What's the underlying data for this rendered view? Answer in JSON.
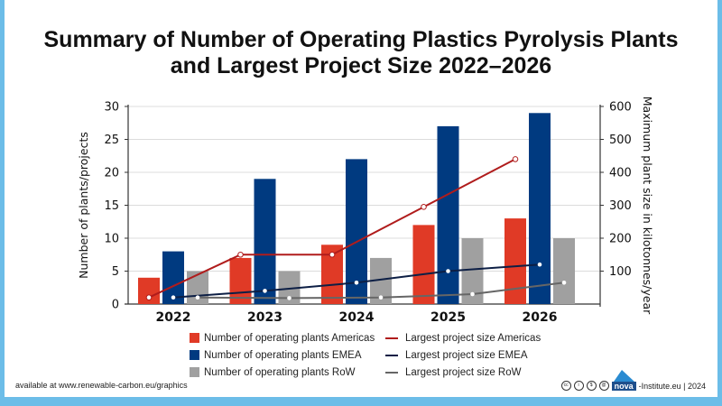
{
  "title_line1": "Summary of Number of Operating Plastics Pyrolysis Plants",
  "title_line2": "and Largest Project Size 2022–2026",
  "chart_data": {
    "type": "bar+line",
    "categories": [
      "2022",
      "2023",
      "2024",
      "2025",
      "2026"
    ],
    "ylabel": "Number of plants/projects",
    "ylabel_right": "Maximum plant size in kilotonnes/year",
    "ylim": [
      0,
      30
    ],
    "yticks": [
      0,
      5,
      10,
      15,
      20,
      25,
      30
    ],
    "ylim_right": [
      0,
      600
    ],
    "yticks_right": [
      100,
      200,
      300,
      400,
      500,
      600
    ],
    "grid": true,
    "legend_position": "bottom",
    "bar_series": [
      {
        "name": "Number of operating plants Americas",
        "color": "#e03a26",
        "values": [
          4,
          7,
          9,
          12,
          13
        ]
      },
      {
        "name": "Number of operating plants EMEA",
        "color": "#003a80",
        "values": [
          8,
          19,
          22,
          27,
          29
        ]
      },
      {
        "name": "Number of operating plants RoW",
        "color": "#a0a0a0",
        "values": [
          5,
          5,
          7,
          10,
          10
        ]
      }
    ],
    "line_series": [
      {
        "name": "Largest project size Americas",
        "color": "#b01c1c",
        "values": [
          20,
          150,
          150,
          295,
          440
        ]
      },
      {
        "name": "Largest project size EMEA",
        "color": "#0d1f45",
        "values": [
          20,
          40,
          65,
          100,
          120
        ]
      },
      {
        "name": "Largest project size RoW",
        "color": "#666666",
        "values": [
          20,
          18,
          20,
          30,
          65
        ]
      }
    ]
  },
  "footer": {
    "source": "available at www.renewable-carbon.eu/graphics",
    "brand": "nova",
    "brand_suffix": "-Institute.eu | 2024",
    "license_icons": [
      "cc",
      "by",
      "nc",
      "sa"
    ]
  }
}
